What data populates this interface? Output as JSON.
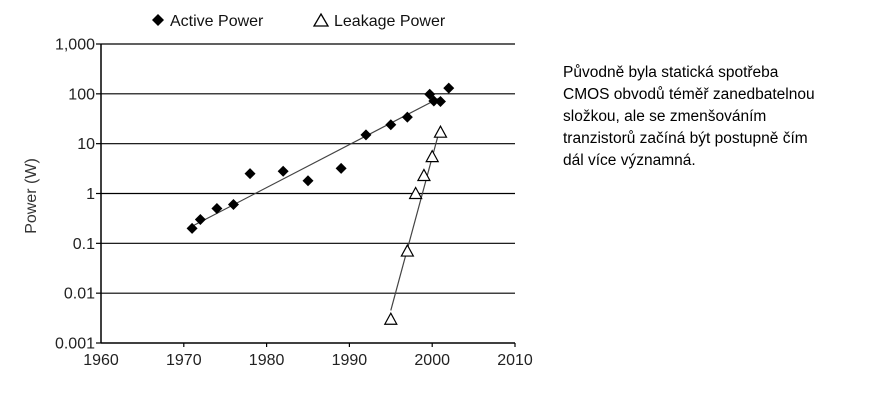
{
  "side_note": {
    "lines": [
      "Původně byla statická spotřeba",
      "CMOS obvodů téměř zanedbatelnou",
      "složkou, ale se zmenšováním",
      "tranzistorů začíná být postupně čím",
      "dál více významná."
    ]
  },
  "chart_data": {
    "type": "scatter",
    "title": "",
    "xlabel": "",
    "ylabel": "Power (W)",
    "yscale": "log",
    "xlim": [
      1960,
      2010
    ],
    "ylim": [
      0.001,
      1000
    ],
    "xticks": [
      1960,
      1970,
      1980,
      1990,
      2000,
      2010
    ],
    "yticks": [
      0.001,
      0.01,
      0.1,
      1,
      10,
      100,
      1000
    ],
    "yticklabels": [
      "0.001",
      "0.01",
      "0.1",
      "1",
      "10",
      "100",
      "1,000"
    ],
    "grid": "horizontal",
    "legend_position": "top",
    "series": [
      {
        "name": "Active Power",
        "marker": "diamond-filled",
        "color": "#000000",
        "x": [
          1971,
          1972,
          1974,
          1976,
          1978,
          1982,
          1985,
          1989,
          1992,
          1995,
          1997,
          1999.7,
          2000.2,
          2001,
          2002
        ],
        "y": [
          0.2,
          0.3,
          0.5,
          0.6,
          2.5,
          2.8,
          1.8,
          3.2,
          15,
          24,
          34,
          98,
          72,
          70,
          130
        ],
        "trendline": {
          "x": [
            1971,
            2001
          ],
          "y": [
            0.22,
            85
          ]
        }
      },
      {
        "name": "Leakage Power",
        "marker": "triangle-open",
        "color": "#000000",
        "x": [
          1995,
          1997,
          1998,
          1999,
          2000,
          2001
        ],
        "y": [
          0.003,
          0.07,
          1,
          2.3,
          5.5,
          17
        ],
        "trendline": {
          "x": [
            1995,
            2001
          ],
          "y": [
            0.0045,
            22
          ]
        }
      }
    ]
  }
}
